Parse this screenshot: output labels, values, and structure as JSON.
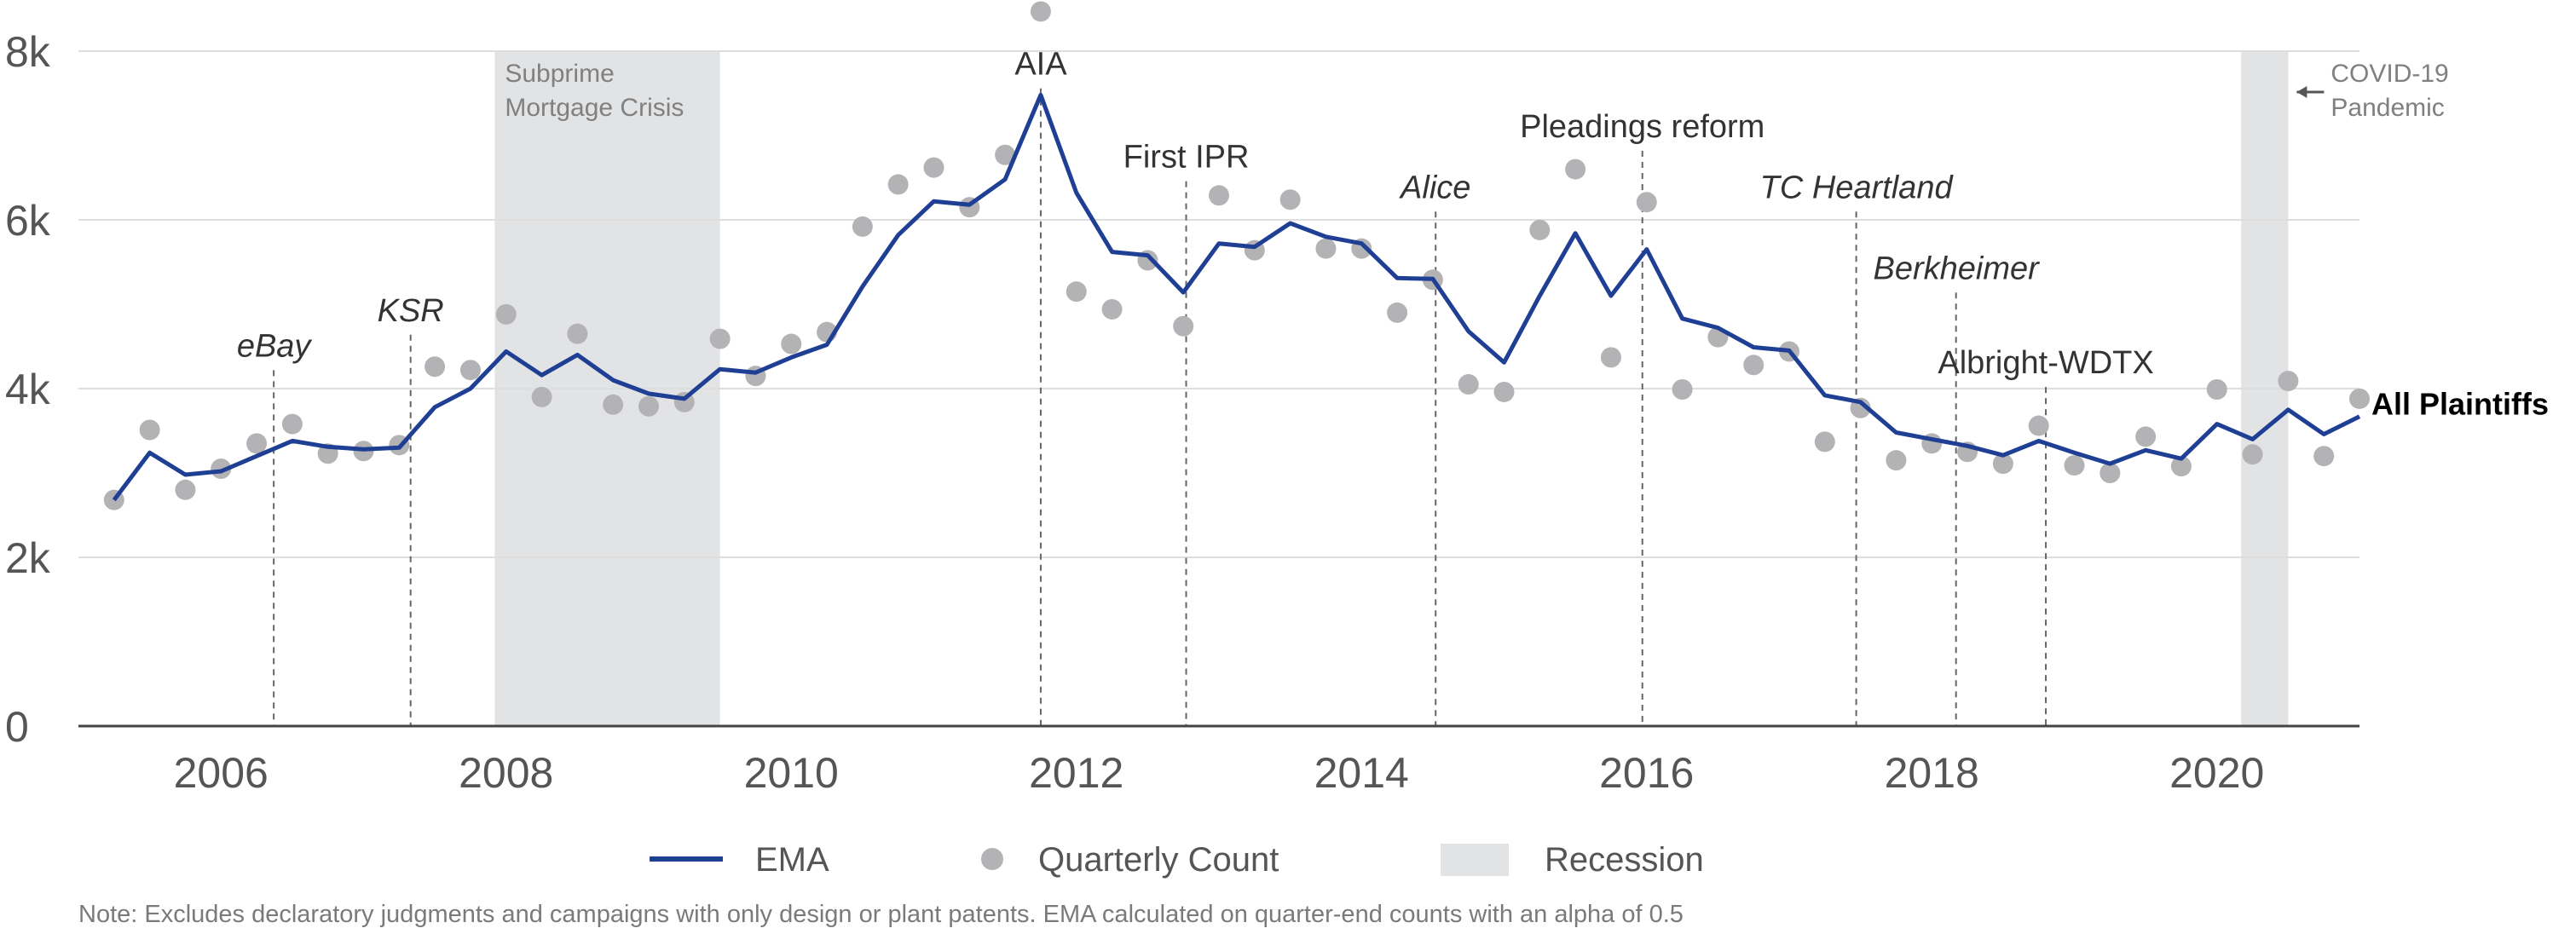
{
  "chart_data": {
    "type": "line",
    "title": "",
    "xlabel": "",
    "ylabel": "",
    "x_range": [
      2005.0,
      2021.0
    ],
    "ylim": [
      0,
      8000
    ],
    "y_ticks": [
      0,
      2000,
      4000,
      6000,
      8000
    ],
    "y_tick_labels": [
      "0",
      "2k",
      "4k",
      "6k",
      "8k"
    ],
    "x_ticks": [
      2006,
      2008,
      2010,
      2012,
      2014,
      2016,
      2018,
      2020
    ],
    "x_tick_labels": [
      "2006",
      "2008",
      "2010",
      "2012",
      "2014",
      "2016",
      "2018",
      "2020"
    ],
    "grid": "horizontal",
    "series_end_label": "All Plaintiffs",
    "series": [
      {
        "name": "EMA",
        "kind": "line",
        "color": "#1f3f94",
        "points": [
          [
            2005.25,
            2680
          ],
          [
            2005.5,
            3240
          ],
          [
            2005.75,
            2980
          ],
          [
            2006.0,
            3020
          ],
          [
            2006.25,
            3200
          ],
          [
            2006.5,
            3380
          ],
          [
            2006.75,
            3310
          ],
          [
            2007.0,
            3280
          ],
          [
            2007.25,
            3300
          ],
          [
            2007.5,
            3780
          ],
          [
            2007.75,
            4000
          ],
          [
            2008.0,
            4440
          ],
          [
            2008.25,
            4160
          ],
          [
            2008.5,
            4400
          ],
          [
            2008.75,
            4100
          ],
          [
            2009.0,
            3940
          ],
          [
            2009.25,
            3880
          ],
          [
            2009.5,
            4230
          ],
          [
            2009.75,
            4190
          ],
          [
            2010.0,
            4370
          ],
          [
            2010.25,
            4520
          ],
          [
            2010.5,
            5210
          ],
          [
            2010.75,
            5820
          ],
          [
            2011.0,
            6220
          ],
          [
            2011.25,
            6180
          ],
          [
            2011.5,
            6480
          ],
          [
            2011.75,
            7480
          ],
          [
            2012.0,
            6320
          ],
          [
            2012.25,
            5620
          ],
          [
            2012.5,
            5580
          ],
          [
            2012.75,
            5140
          ],
          [
            2013.0,
            5720
          ],
          [
            2013.25,
            5680
          ],
          [
            2013.5,
            5960
          ],
          [
            2013.75,
            5800
          ],
          [
            2014.0,
            5720
          ],
          [
            2014.25,
            5310
          ],
          [
            2014.5,
            5300
          ],
          [
            2014.75,
            4680
          ],
          [
            2015.0,
            4310
          ],
          [
            2015.25,
            5100
          ],
          [
            2015.5,
            5840
          ],
          [
            2015.75,
            5100
          ],
          [
            2016.0,
            5650
          ],
          [
            2016.25,
            4830
          ],
          [
            2016.5,
            4720
          ],
          [
            2016.75,
            4490
          ],
          [
            2017.0,
            4450
          ],
          [
            2017.25,
            3920
          ],
          [
            2017.5,
            3840
          ],
          [
            2017.75,
            3480
          ],
          [
            2018.0,
            3400
          ],
          [
            2018.25,
            3320
          ],
          [
            2018.5,
            3210
          ],
          [
            2018.75,
            3380
          ],
          [
            2019.0,
            3240
          ],
          [
            2019.25,
            3110
          ],
          [
            2019.5,
            3270
          ],
          [
            2019.75,
            3170
          ],
          [
            2020.0,
            3580
          ],
          [
            2020.25,
            3400
          ],
          [
            2020.5,
            3750
          ],
          [
            2020.75,
            3460
          ],
          [
            2021.0,
            3670
          ]
        ]
      },
      {
        "name": "Quarterly Count",
        "kind": "scatter",
        "color": "#b3b3b5",
        "points": [
          [
            2005.25,
            2680
          ],
          [
            2005.5,
            3510
          ],
          [
            2005.75,
            2800
          ],
          [
            2006.0,
            3050
          ],
          [
            2006.25,
            3350
          ],
          [
            2006.5,
            3580
          ],
          [
            2006.75,
            3230
          ],
          [
            2007.0,
            3260
          ],
          [
            2007.25,
            3330
          ],
          [
            2007.5,
            4260
          ],
          [
            2007.75,
            4220
          ],
          [
            2008.0,
            4880
          ],
          [
            2008.25,
            3900
          ],
          [
            2008.5,
            4650
          ],
          [
            2008.75,
            3810
          ],
          [
            2009.0,
            3790
          ],
          [
            2009.25,
            3840
          ],
          [
            2009.5,
            4590
          ],
          [
            2009.75,
            4150
          ],
          [
            2010.0,
            4530
          ],
          [
            2010.25,
            4670
          ],
          [
            2010.5,
            5920
          ],
          [
            2010.75,
            6420
          ],
          [
            2011.0,
            6620
          ],
          [
            2011.25,
            6150
          ],
          [
            2011.5,
            6770
          ],
          [
            2011.75,
            8470
          ],
          [
            2012.0,
            5150
          ],
          [
            2012.25,
            4940
          ],
          [
            2012.5,
            5520
          ],
          [
            2012.75,
            4740
          ],
          [
            2013.0,
            6290
          ],
          [
            2013.25,
            5640
          ],
          [
            2013.5,
            6240
          ],
          [
            2013.75,
            5660
          ],
          [
            2014.0,
            5660
          ],
          [
            2014.25,
            4900
          ],
          [
            2014.5,
            5290
          ],
          [
            2014.75,
            4050
          ],
          [
            2015.0,
            3960
          ],
          [
            2015.25,
            5880
          ],
          [
            2015.5,
            6600
          ],
          [
            2015.75,
            4370
          ],
          [
            2016.0,
            6210
          ],
          [
            2016.25,
            3990
          ],
          [
            2016.5,
            4610
          ],
          [
            2016.75,
            4280
          ],
          [
            2017.0,
            4440
          ],
          [
            2017.25,
            3370
          ],
          [
            2017.5,
            3770
          ],
          [
            2017.75,
            3150
          ],
          [
            2018.0,
            3350
          ],
          [
            2018.25,
            3250
          ],
          [
            2018.5,
            3110
          ],
          [
            2018.75,
            3560
          ],
          [
            2019.0,
            3090
          ],
          [
            2019.25,
            3000
          ],
          [
            2019.5,
            3430
          ],
          [
            2019.75,
            3080
          ],
          [
            2020.0,
            3990
          ],
          [
            2020.25,
            3220
          ],
          [
            2020.5,
            4090
          ],
          [
            2020.75,
            3200
          ],
          [
            2021.0,
            3880
          ]
        ]
      }
    ],
    "recessions": [
      {
        "start": 2007.92,
        "end": 2009.5,
        "label_lines": [
          "Subprime",
          "Mortgage Crisis"
        ]
      },
      {
        "start": 2020.17,
        "end": 2020.5,
        "label_lines": [
          "COVID-19",
          "Pandemic"
        ]
      }
    ],
    "events": [
      {
        "x": 2006.37,
        "label": "eBay",
        "italic": true,
        "label_y": 4380
      },
      {
        "x": 2007.33,
        "label": "KSR",
        "italic": true,
        "label_y": 4800
      },
      {
        "x": 2011.75,
        "label": "AIA",
        "italic": false,
        "label_y": 7720
      },
      {
        "x": 2012.77,
        "label": "First IPR",
        "italic": false,
        "label_y": 6620
      },
      {
        "x": 2014.52,
        "label": "Alice",
        "italic": true,
        "label_y": 6260
      },
      {
        "x": 2015.97,
        "label": "Pleadings reform",
        "italic": false,
        "label_y": 6980
      },
      {
        "x": 2017.47,
        "label": "TC Heartland",
        "italic": true,
        "label_y": 6260
      },
      {
        "x": 2018.17,
        "label": "Berkheimer",
        "italic": true,
        "label_y": 5300
      },
      {
        "x": 2018.8,
        "label": "Albright-WDTX",
        "italic": false,
        "label_y": 4180
      }
    ]
  },
  "legend": {
    "ema_label": "EMA",
    "count_label": "Quarterly Count",
    "recession_label": "Recession",
    "recession_color": "#e2e3e5"
  },
  "note": "Note: Excludes declaratory judgments and campaigns with only design or plant patents. EMA calculated on quarter-end counts with an alpha of 0.5"
}
